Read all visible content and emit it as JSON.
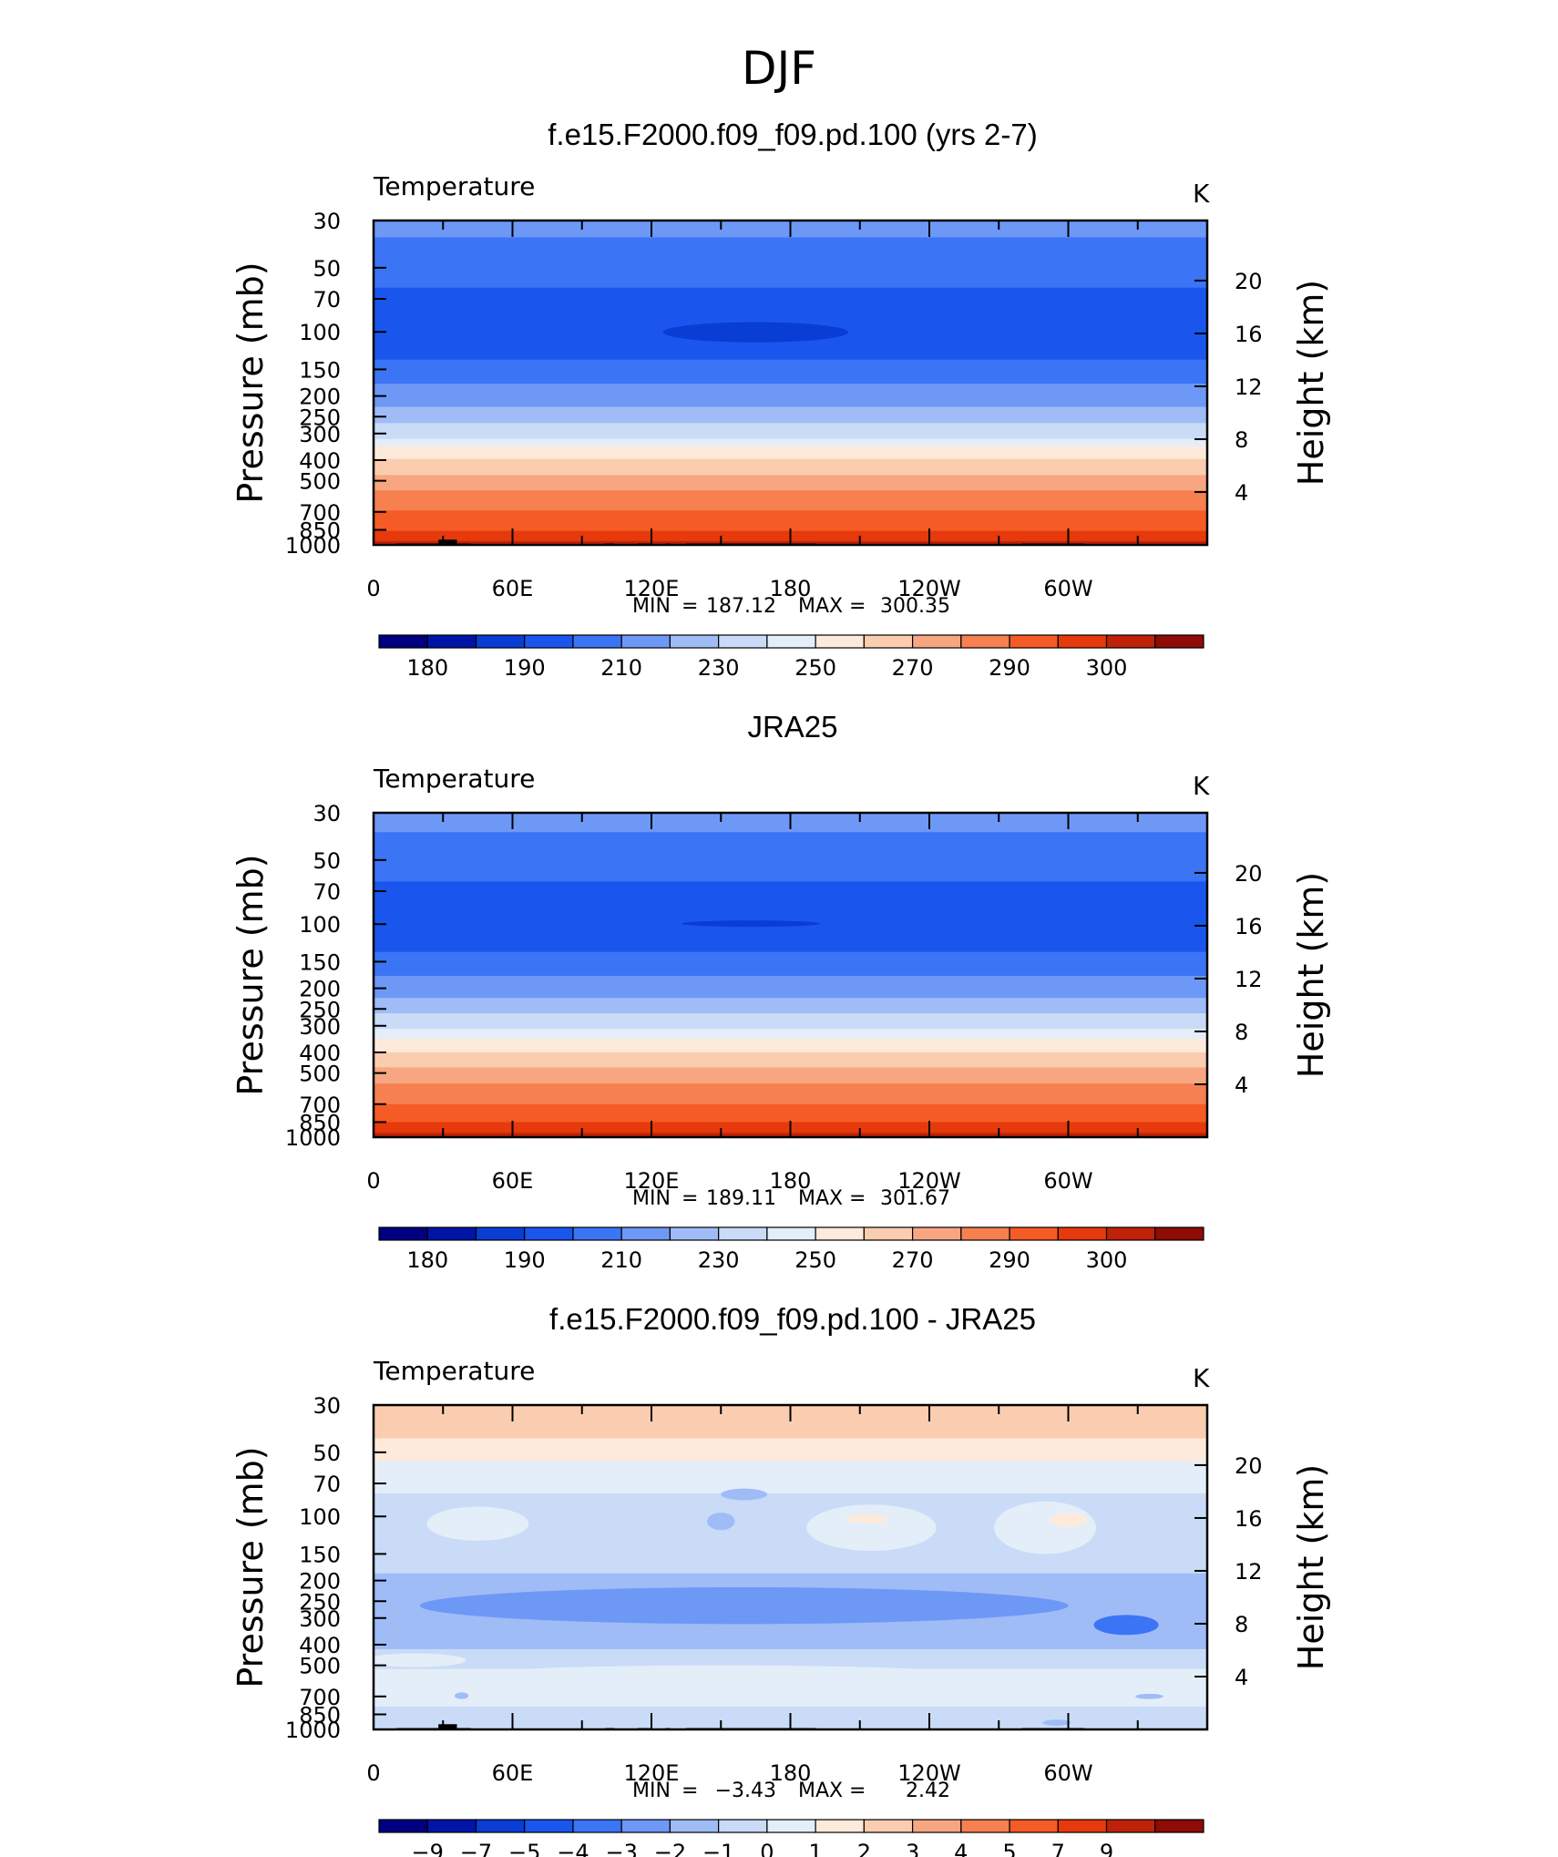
{
  "figure": {
    "title": "DJF",
    "yaxis_left_label": "Pressure (mb)",
    "yaxis_right_label": "Height (km)",
    "pressure_ticks": [
      "30",
      "50",
      "70",
      "100",
      "150",
      "200",
      "250",
      "300",
      "400",
      "500",
      "700",
      "850",
      "1000"
    ],
    "pressure_values": [
      30,
      50,
      70,
      100,
      150,
      200,
      250,
      300,
      400,
      500,
      700,
      850,
      1000
    ],
    "height_ticks": [
      "20",
      "16",
      "12",
      "8",
      "4"
    ],
    "height_values": [
      20,
      16,
      12,
      8,
      4
    ],
    "lon_ticks": [
      "0",
      "60E",
      "120E",
      "180",
      "120W",
      "60W"
    ],
    "lon_values": [
      0,
      60,
      120,
      180,
      240,
      300
    ]
  },
  "chart_data": [
    {
      "type": "heatmap",
      "panel_title": "f.e15.F2000.f09_f09.pd.100 (yrs 2-7)",
      "variable": "Temperature",
      "units": "K",
      "min_label": "MIN",
      "min_value": "187.12",
      "max_label": "MAX",
      "max_value": "300.35",
      "xlim": [
        0,
        360
      ],
      "ylim": [
        1000,
        30
      ],
      "colorbar": {
        "colors": [
          "#000080",
          "#0015a8",
          "#0a3dd4",
          "#1a56ee",
          "#3b74f5",
          "#6e98f6",
          "#9fbcf7",
          "#c9dbf7",
          "#e4eef8",
          "#fdeadb",
          "#fbcdb0",
          "#f8a682",
          "#f68050",
          "#f55b24",
          "#e6390c",
          "#bf2208",
          "#8e0b07"
        ],
        "labels": [
          "180",
          "190",
          "210",
          "230",
          "250",
          "270",
          "290",
          "300"
        ]
      },
      "levels": [
        {
          "p_top": 30,
          "p_bot": 36,
          "color": "#6e98f6"
        },
        {
          "p_top": 36,
          "p_bot": 62,
          "color": "#3b74f5"
        },
        {
          "p_top": 62,
          "p_bot": 135,
          "color": "#1a56ee"
        },
        {
          "p_top": 135,
          "p_bot": 175,
          "color": "#3b74f5"
        },
        {
          "p_top": 175,
          "p_bot": 225,
          "color": "#6e98f6"
        },
        {
          "p_top": 225,
          "p_bot": 268,
          "color": "#9fbcf7"
        },
        {
          "p_top": 268,
          "p_bot": 318,
          "color": "#c9dbf7"
        },
        {
          "p_top": 318,
          "p_bot": 345,
          "color": "#e4eef8"
        },
        {
          "p_top": 345,
          "p_bot": 395,
          "color": "#fdeadb"
        },
        {
          "p_top": 395,
          "p_bot": 470,
          "color": "#fbcdb0"
        },
        {
          "p_top": 470,
          "p_bot": 555,
          "color": "#f8a682"
        },
        {
          "p_top": 555,
          "p_bot": 690,
          "color": "#f68050"
        },
        {
          "p_top": 690,
          "p_bot": 860,
          "color": "#f55b24"
        },
        {
          "p_top": 860,
          "p_bot": 960,
          "color": "#e6390c"
        },
        {
          "p_top": 960,
          "p_bot": 1000,
          "color": "#bf2208"
        }
      ],
      "blobs": [
        {
          "lon": 165,
          "p": 100,
          "dlon": 40,
          "p_top": 90,
          "p_bot": 112,
          "color": "#0a3dd4"
        }
      ],
      "terrain": [
        {
          "lon0": 10,
          "lon1": 42,
          "p": 985
        },
        {
          "lon0": 28,
          "lon1": 36,
          "p": 945
        },
        {
          "lon0": 100,
          "lon1": 104,
          "p": 985
        },
        {
          "lon0": 114,
          "lon1": 120,
          "p": 985
        },
        {
          "lon0": 126,
          "lon1": 128,
          "p": 985
        },
        {
          "lon0": 135,
          "lon1": 191,
          "p": 985
        },
        {
          "lon0": 280,
          "lon1": 307,
          "p": 985
        }
      ]
    },
    {
      "type": "heatmap",
      "panel_title": "JRA25",
      "variable": "Temperature",
      "units": "K",
      "min_label": "MIN",
      "min_value": "189.11",
      "max_label": "MAX",
      "max_value": "301.67",
      "xlim": [
        0,
        360
      ],
      "ylim": [
        1000,
        30
      ],
      "colorbar": {
        "colors": [
          "#000080",
          "#0015a8",
          "#0a3dd4",
          "#1a56ee",
          "#3b74f5",
          "#6e98f6",
          "#9fbcf7",
          "#c9dbf7",
          "#e4eef8",
          "#fdeadb",
          "#fbcdb0",
          "#f8a682",
          "#f68050",
          "#f55b24",
          "#e6390c",
          "#bf2208",
          "#8e0b07"
        ],
        "labels": [
          "180",
          "190",
          "210",
          "230",
          "250",
          "270",
          "290",
          "300"
        ]
      },
      "levels": [
        {
          "p_top": 30,
          "p_bot": 37,
          "color": "#6e98f6"
        },
        {
          "p_top": 37,
          "p_bot": 63,
          "color": "#3b74f5"
        },
        {
          "p_top": 63,
          "p_bot": 135,
          "color": "#1a56ee"
        },
        {
          "p_top": 135,
          "p_bot": 175,
          "color": "#3b74f5"
        },
        {
          "p_top": 175,
          "p_bot": 222,
          "color": "#6e98f6"
        },
        {
          "p_top": 222,
          "p_bot": 262,
          "color": "#9fbcf7"
        },
        {
          "p_top": 262,
          "p_bot": 310,
          "color": "#c9dbf7"
        },
        {
          "p_top": 310,
          "p_bot": 345,
          "color": "#e4eef8"
        },
        {
          "p_top": 345,
          "p_bot": 400,
          "color": "#fdeadb"
        },
        {
          "p_top": 400,
          "p_bot": 470,
          "color": "#fbcdb0"
        },
        {
          "p_top": 470,
          "p_bot": 560,
          "color": "#f8a682"
        },
        {
          "p_top": 560,
          "p_bot": 700,
          "color": "#f68050"
        },
        {
          "p_top": 700,
          "p_bot": 850,
          "color": "#f55b24"
        },
        {
          "p_top": 850,
          "p_bot": 955,
          "color": "#e6390c"
        },
        {
          "p_top": 955,
          "p_bot": 1000,
          "color": "#bf2208"
        }
      ],
      "blobs": [
        {
          "lon": 163,
          "p": 99,
          "dlon": 30,
          "p_top": 96,
          "p_bot": 103,
          "color": "#0a3dd4"
        }
      ],
      "terrain": []
    },
    {
      "type": "heatmap",
      "panel_title": "f.e15.F2000.f09_f09.pd.100 - JRA25",
      "variable": "Temperature",
      "units": "K",
      "min_label": "MIN",
      "min_value": "−3.43",
      "max_label": "MAX",
      "max_value": "2.42",
      "xlim": [
        0,
        360
      ],
      "ylim": [
        1000,
        30
      ],
      "colorbar": {
        "colors": [
          "#000080",
          "#0015a8",
          "#0a3dd4",
          "#1a56ee",
          "#3b74f5",
          "#6e98f6",
          "#9fbcf7",
          "#c9dbf7",
          "#e4eef8",
          "#fdeadb",
          "#fbcdb0",
          "#f8a682",
          "#f68050",
          "#f55b24",
          "#e6390c",
          "#bf2208",
          "#8e0b07"
        ],
        "labels": [
          "−9",
          "−7",
          "−5",
          "−4",
          "−3",
          "−2",
          "−1",
          "0",
          "1",
          "2",
          "3",
          "4",
          "5",
          "7",
          "9"
        ]
      },
      "levels": [
        {
          "p_top": 30,
          "p_bot": 43,
          "color": "#fbcdb0"
        },
        {
          "p_top": 43,
          "p_bot": 55,
          "color": "#fdeadb"
        },
        {
          "p_top": 55,
          "p_bot": 78,
          "color": "#e4eef8"
        },
        {
          "p_top": 78,
          "p_bot": 185,
          "color": "#c9dbf7"
        },
        {
          "p_top": 185,
          "p_bot": 420,
          "color": "#9fbcf7"
        },
        {
          "p_top": 420,
          "p_bot": 520,
          "color": "#c9dbf7"
        },
        {
          "p_top": 520,
          "p_bot": 780,
          "color": "#e4eef8"
        },
        {
          "p_top": 780,
          "p_bot": 1000,
          "color": "#c9dbf7"
        }
      ],
      "blobs": [
        {
          "lon": 45,
          "p": 108,
          "dlon": 22,
          "p_top": 90,
          "p_bot": 130,
          "color": "#e4eef8"
        },
        {
          "lon": 215,
          "p": 110,
          "dlon": 28,
          "p_top": 88,
          "p_bot": 145,
          "color": "#e4eef8"
        },
        {
          "lon": 213,
          "p": 103,
          "dlon": 9,
          "p_top": 98,
          "p_bot": 108,
          "color": "#fdeadb"
        },
        {
          "lon": 290,
          "p": 110,
          "dlon": 22,
          "p_top": 85,
          "p_bot": 150,
          "color": "#e4eef8"
        },
        {
          "lon": 300,
          "p": 103,
          "dlon": 8,
          "p_top": 96,
          "p_bot": 112,
          "color": "#fdeadb"
        },
        {
          "lon": 150,
          "p": 105,
          "dlon": 6,
          "p_top": 96,
          "p_bot": 116,
          "color": "#9fbcf7"
        },
        {
          "lon": 160,
          "p": 78,
          "dlon": 10,
          "p_top": 74,
          "p_bot": 84,
          "color": "#9fbcf7"
        },
        {
          "lon": 160,
          "p": 258,
          "dlon": 140,
          "p_top": 215,
          "p_bot": 320,
          "color": "#6e98f6"
        },
        {
          "lon": 325,
          "p": 320,
          "dlon": 14,
          "p_top": 290,
          "p_bot": 360,
          "color": "#3b74f5"
        },
        {
          "lon": 18,
          "p": 470,
          "dlon": 22,
          "p_top": 440,
          "p_bot": 510,
          "color": "#e4eef8"
        },
        {
          "lon": 150,
          "p": 560,
          "dlon": 110,
          "p_top": 500,
          "p_bot": 620,
          "color": "#e4eef8"
        },
        {
          "lon": 335,
          "p": 700,
          "dlon": 6,
          "p_top": 680,
          "p_bot": 720,
          "color": "#9fbcf7"
        },
        {
          "lon": 38,
          "p": 690,
          "dlon": 3,
          "p_top": 670,
          "p_bot": 720,
          "color": "#9fbcf7"
        },
        {
          "lon": 295,
          "p": 930,
          "dlon": 6,
          "p_top": 900,
          "p_bot": 960,
          "color": "#9fbcf7"
        }
      ],
      "terrain": [
        {
          "lon0": 10,
          "lon1": 42,
          "p": 985
        },
        {
          "lon0": 28,
          "lon1": 36,
          "p": 945
        },
        {
          "lon0": 100,
          "lon1": 104,
          "p": 985
        },
        {
          "lon0": 114,
          "lon1": 120,
          "p": 985
        },
        {
          "lon0": 126,
          "lon1": 128,
          "p": 985
        },
        {
          "lon0": 135,
          "lon1": 191,
          "p": 985
        },
        {
          "lon0": 280,
          "lon1": 307,
          "p": 985
        }
      ]
    }
  ]
}
